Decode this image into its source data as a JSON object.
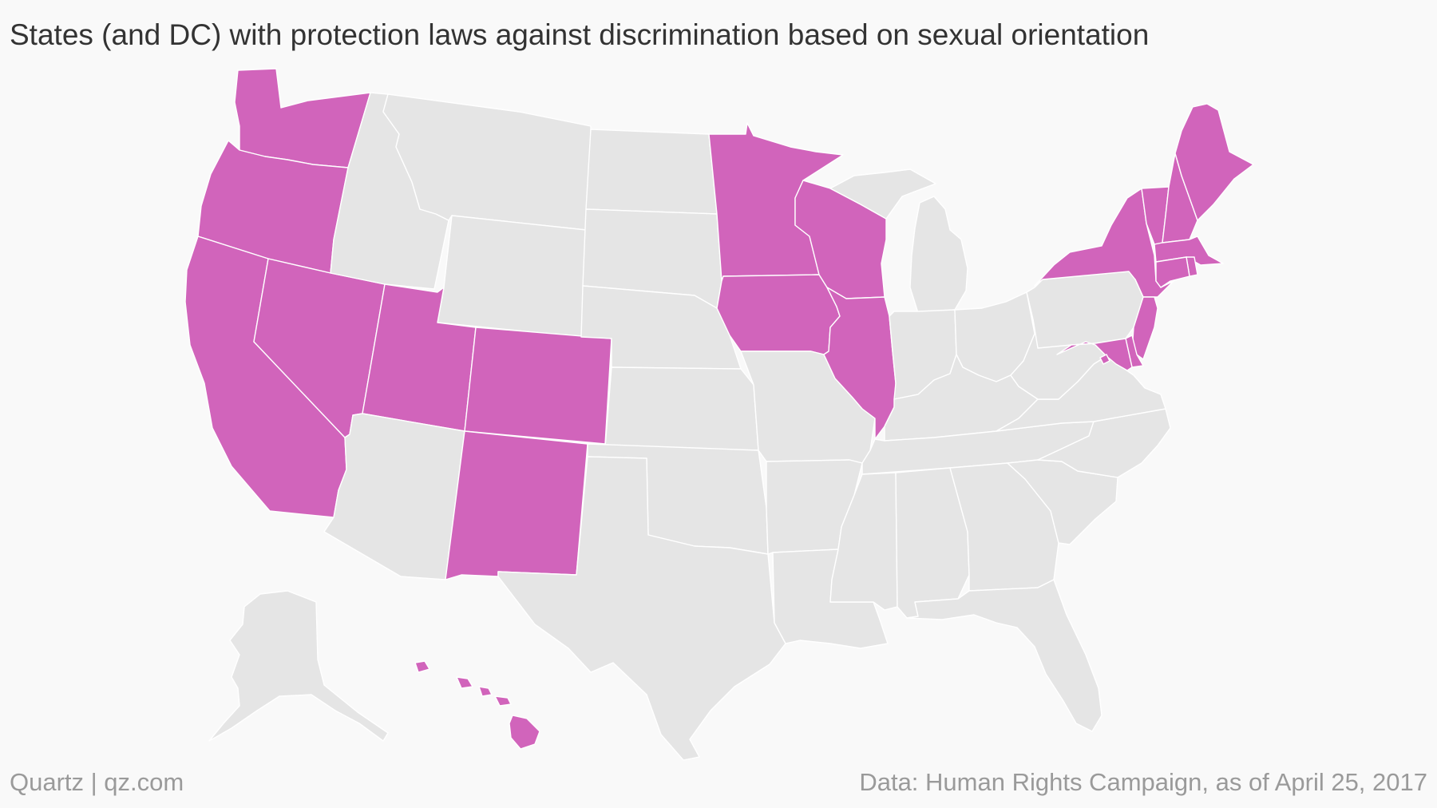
{
  "title": "States (and DC) with protection laws against discrimination based on sexual orientation",
  "colors": {
    "background": "#f9f9f9",
    "protected": "#d164bb",
    "not_protected": "#e5e5e5",
    "border": "#ffffff"
  },
  "map": {
    "projection": "albers-usa",
    "protected_states": [
      "WA",
      "OR",
      "CA",
      "NV",
      "UT",
      "CO",
      "NM",
      "MN",
      "IA",
      "WI",
      "IL",
      "NY",
      "VT",
      "NH",
      "ME",
      "MA",
      "RI",
      "CT",
      "NJ",
      "DE",
      "MD",
      "DC",
      "HI"
    ],
    "not_protected_states": [
      "MT",
      "ID",
      "WY",
      "ND",
      "SD",
      "NE",
      "KS",
      "OK",
      "TX",
      "AZ",
      "MO",
      "AR",
      "LA",
      "MS",
      "AL",
      "TN",
      "KY",
      "IN",
      "OH",
      "MI",
      "WV",
      "VA",
      "NC",
      "SC",
      "GA",
      "FL",
      "PA",
      "AK"
    ]
  },
  "footer": {
    "source_brand": "Quartz | qz.com",
    "data_source": "Data: Human Rights Campaign, as of April 25, 2017"
  }
}
